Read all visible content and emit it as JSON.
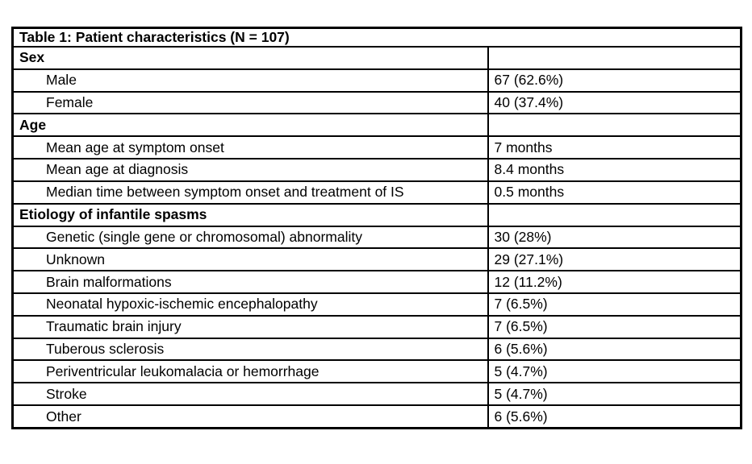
{
  "colors": {
    "text": "#000000",
    "border": "#000000",
    "background": "#ffffff"
  },
  "table": {
    "title": "Table 1: Patient characteristics (N = 107)",
    "rows": [
      {
        "type": "section",
        "label": "Sex",
        "value": ""
      },
      {
        "type": "data",
        "label": "Male",
        "value": "67 (62.6%)"
      },
      {
        "type": "data",
        "label": "Female",
        "value": "40 (37.4%)"
      },
      {
        "type": "section",
        "label": "Age",
        "value": ""
      },
      {
        "type": "data",
        "label": "Mean age at symptom onset",
        "value": "7 months"
      },
      {
        "type": "data",
        "label": "Mean age at diagnosis",
        "value": "8.4 months"
      },
      {
        "type": "data",
        "label": "Median time between symptom onset and treatment of IS",
        "value": "0.5 months"
      },
      {
        "type": "section",
        "label": "Etiology of infantile spasms",
        "value": ""
      },
      {
        "type": "data",
        "label": "Genetic (single gene or chromosomal) abnormality",
        "value": "30 (28%)"
      },
      {
        "type": "data",
        "label": "Unknown",
        "value": "29 (27.1%)"
      },
      {
        "type": "data",
        "label": "Brain malformations",
        "value": "12 (11.2%)"
      },
      {
        "type": "data",
        "label": "Neonatal hypoxic-ischemic encephalopathy",
        "value": "7 (6.5%)"
      },
      {
        "type": "data",
        "label": "Traumatic brain injury",
        "value": "7 (6.5%)"
      },
      {
        "type": "data",
        "label": "Tuberous sclerosis",
        "value": "6 (5.6%)"
      },
      {
        "type": "data",
        "label": "Periventricular leukomalacia or hemorrhage",
        "value": "5 (4.7%)"
      },
      {
        "type": "data",
        "label": "Stroke",
        "value": "5 (4.7%)"
      },
      {
        "type": "data",
        "label": "Other",
        "value": "6 (5.6%)"
      }
    ]
  }
}
